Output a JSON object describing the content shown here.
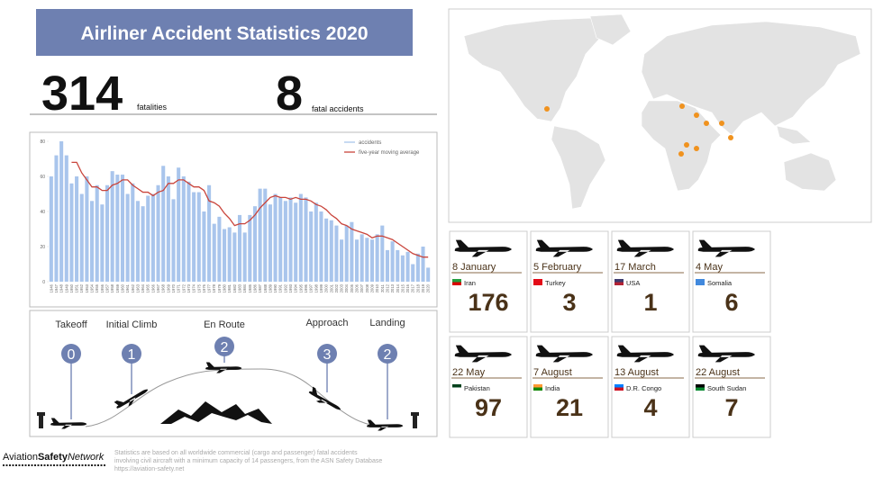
{
  "header": {
    "title": "Airliner Accident Statistics 2020"
  },
  "stats": {
    "fatalities": {
      "value": 314,
      "label": "fatalities"
    },
    "accidents": {
      "value": 8,
      "label": "fatal accidents"
    }
  },
  "chart_data": {
    "type": "bar",
    "categories": [
      "1946",
      "1947",
      "1948",
      "1949",
      "1950",
      "1951",
      "1952",
      "1953",
      "1954",
      "1955",
      "1956",
      "1957",
      "1958",
      "1959",
      "1960",
      "1961",
      "1962",
      "1963",
      "1964",
      "1965",
      "1966",
      "1967",
      "1968",
      "1969",
      "1970",
      "1971",
      "1972",
      "1973",
      "1974",
      "1975",
      "1976",
      "1977",
      "1978",
      "1979",
      "1980",
      "1981",
      "1982",
      "1983",
      "1984",
      "1985",
      "1986",
      "1987",
      "1988",
      "1989",
      "1990",
      "1991",
      "1992",
      "1993",
      "1994",
      "1995",
      "1996",
      "1997",
      "1998",
      "1999",
      "2000",
      "2001",
      "2002",
      "2003",
      "2004",
      "2005",
      "2006",
      "2007",
      "2008",
      "2009",
      "2010",
      "2011",
      "2012",
      "2013",
      "2014",
      "2015",
      "2016",
      "2017",
      "2018",
      "2019",
      "2020"
    ],
    "series": [
      {
        "name": "accidents",
        "color": "#a9c5ec",
        "type": "bar",
        "values": [
          60,
          72,
          80,
          72,
          56,
          60,
          50,
          60,
          46,
          55,
          44,
          55,
          63,
          61,
          61,
          50,
          56,
          46,
          43,
          49,
          50,
          55,
          66,
          60,
          47,
          65,
          60,
          57,
          51,
          51,
          40,
          55,
          33,
          37,
          30,
          31,
          28,
          38,
          28,
          38,
          43,
          53,
          53,
          44,
          50,
          48,
          46,
          48,
          45,
          50,
          48,
          40,
          45,
          40,
          36,
          35,
          32,
          24,
          32,
          34,
          24,
          27,
          25,
          24,
          27,
          32,
          18,
          23,
          18,
          15,
          17,
          10,
          16,
          20,
          8
        ]
      },
      {
        "name": "five-year moving average",
        "color": "#c9453c",
        "type": "line",
        "values": [
          null,
          null,
          null,
          null,
          68,
          68,
          62,
          58,
          54,
          54,
          52,
          52,
          55,
          56,
          58,
          58,
          55,
          53,
          51,
          51,
          49,
          51,
          52,
          56,
          56,
          58,
          58,
          56,
          54,
          54,
          52,
          46,
          45,
          43,
          39,
          36,
          32,
          33,
          33,
          35,
          38,
          42,
          45,
          48,
          49,
          48,
          48,
          47,
          48,
          47,
          47,
          46,
          44,
          43,
          41,
          38,
          36,
          33,
          32,
          30,
          29,
          28,
          27,
          25,
          26,
          26,
          25,
          24,
          22,
          20,
          18,
          16,
          15,
          14,
          14
        ]
      }
    ],
    "ylim": [
      0,
      80
    ],
    "yticks": [
      0,
      20,
      40,
      60,
      80
    ],
    "grid": false,
    "legend": "upper right"
  },
  "phases": [
    {
      "label": "Takeoff",
      "count": 0
    },
    {
      "label": "Initial Climb",
      "count": 1
    },
    {
      "label": "En Route",
      "count": 2
    },
    {
      "label": "Approach",
      "count": 3
    },
    {
      "label": "Landing",
      "count": 2
    }
  ],
  "accidents": [
    {
      "date": "8 January",
      "country": "Iran",
      "fatalities": 176
    },
    {
      "date": "5 February",
      "country": "Turkey",
      "fatalities": 3
    },
    {
      "date": "17 March",
      "country": "USA",
      "fatalities": 1
    },
    {
      "date": "4 May",
      "country": "Somalia",
      "fatalities": 6
    },
    {
      "date": "22 May",
      "country": "Pakistan",
      "fatalities": 97
    },
    {
      "date": "7 August",
      "country": "India",
      "fatalities": 21
    },
    {
      "date": "13 August",
      "country": "D.R. Congo",
      "fatalities": 4
    },
    {
      "date": "22 August",
      "country": "South Sudan",
      "fatalities": 7
    }
  ],
  "footer": {
    "logo": [
      "Aviation",
      "Safety",
      "Network"
    ],
    "note": [
      "Statistics are based on all worldwide commercial (cargo and passenger) fatal accidents",
      "involving civil aircraft with a minimum capacity of 14 passengers, from the ASN Safety Database",
      "https://aviation-safety.net"
    ]
  }
}
